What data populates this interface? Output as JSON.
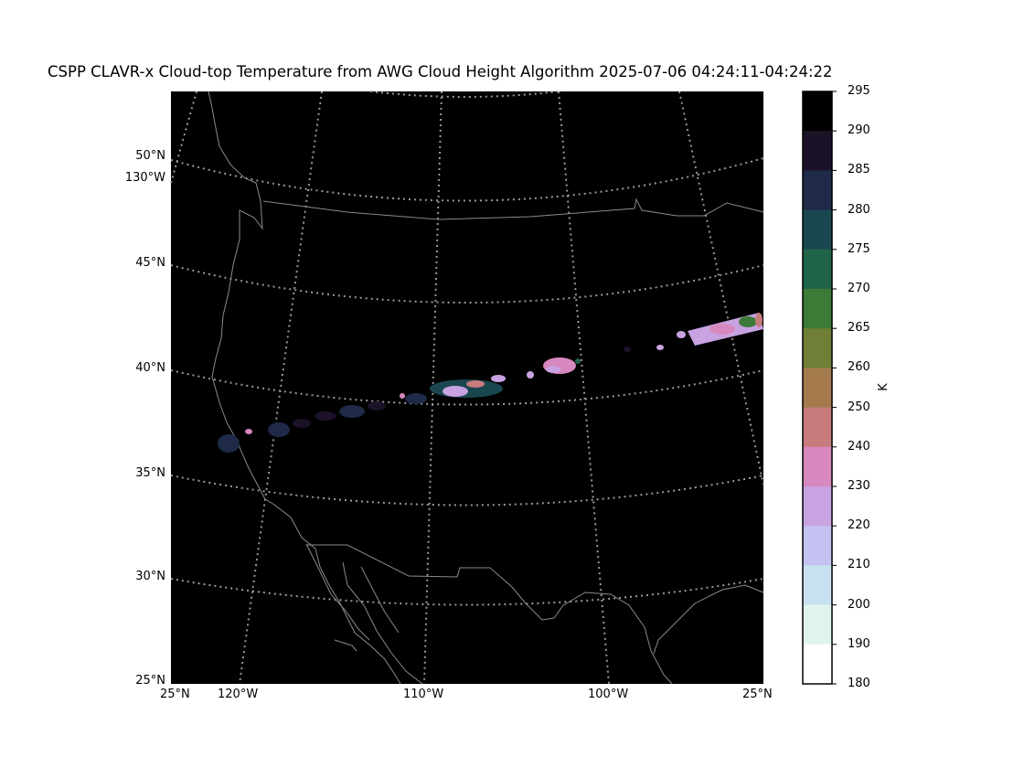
{
  "title": "CSPP CLAVR-x Cloud-top Temperature from AWG Cloud Height Algorithm 2025-07-06 04:24:11-04:24:22",
  "map": {
    "lat_labels": [
      "50°N",
      "130°W",
      "45°N",
      "40°N",
      "35°N",
      "30°N",
      "25°N"
    ],
    "lon_labels": [
      "25°N",
      "120°W",
      "110°W",
      "100°W",
      "25°N"
    ]
  },
  "colorbar": {
    "unit": "K",
    "ticks": [
      "295",
      "290",
      "285",
      "280",
      "275",
      "270",
      "265",
      "260",
      "250",
      "240",
      "230",
      "220",
      "210",
      "200",
      "190",
      "180"
    ],
    "colors": [
      "#000000",
      "#1c1228",
      "#1e2a48",
      "#1a4650",
      "#1f6448",
      "#3c7a38",
      "#6f7f38",
      "#a57b4e",
      "#c77b7c",
      "#d788be",
      "#c9a2e2",
      "#c3c2f0",
      "#c7e1f0",
      "#e0f4ee",
      "#ffffff"
    ]
  },
  "colors": {
    "background": "#000000",
    "coastline": "#8a8a8a",
    "gridline": "#9a9a9a"
  }
}
